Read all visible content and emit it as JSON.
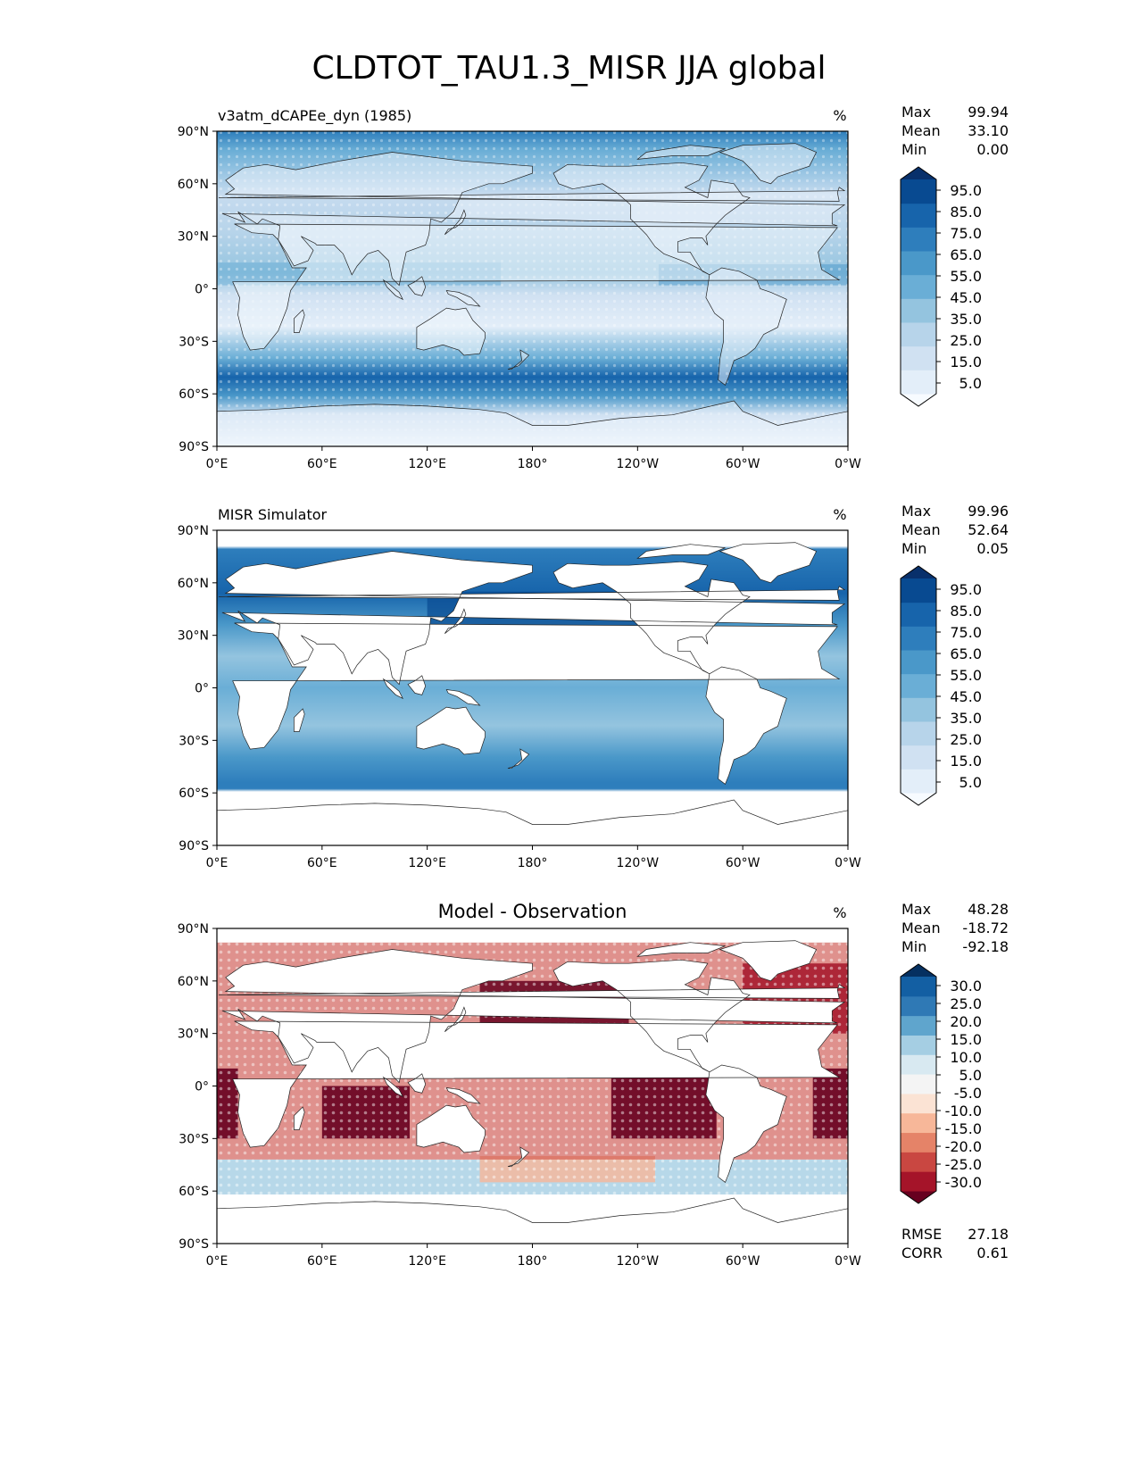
{
  "title": "CLDTOT_TAU1.3_MISR JJA global",
  "panels": [
    {
      "left_title": "v3atm_dCAPEe_dyn (1985)",
      "center_title": "",
      "units": "%",
      "stats": [
        [
          "Max",
          "99.94"
        ],
        [
          "Mean",
          "33.10"
        ],
        [
          "Min",
          "0.00"
        ]
      ],
      "colorbar": {
        "labels": [
          "95.0",
          "85.0",
          "75.0",
          "65.0",
          "55.0",
          "45.0",
          "35.0",
          "25.0",
          "15.0",
          "5.0"
        ],
        "colors": [
          "#f7fbff",
          "#e3eef9",
          "#d0e1f2",
          "#b7d4ea",
          "#94c4df",
          "#6aaed6",
          "#4a98c9",
          "#2e7ebc",
          "#1764ab",
          "#084a91",
          "#08306b"
        ]
      },
      "style": "model"
    },
    {
      "left_title": "MISR Simulator",
      "center_title": "",
      "units": "%",
      "stats": [
        [
          "Max",
          "99.96"
        ],
        [
          "Mean",
          "52.64"
        ],
        [
          "Min",
          "0.05"
        ]
      ],
      "colorbar": {
        "labels": [
          "95.0",
          "85.0",
          "75.0",
          "65.0",
          "55.0",
          "45.0",
          "35.0",
          "25.0",
          "15.0",
          "5.0"
        ],
        "colors": [
          "#f7fbff",
          "#e3eef9",
          "#d0e1f2",
          "#b7d4ea",
          "#94c4df",
          "#6aaed6",
          "#4a98c9",
          "#2e7ebc",
          "#1764ab",
          "#084a91",
          "#08306b"
        ]
      },
      "style": "obs"
    },
    {
      "left_title": "",
      "center_title": "Model - Observation",
      "units": "%",
      "stats": [
        [
          "Max",
          "48.28"
        ],
        [
          "Mean",
          "-18.72"
        ],
        [
          "Min",
          "-92.18"
        ]
      ],
      "colorbar": {
        "labels": [
          "30.0",
          "25.0",
          "20.0",
          "15.0",
          "10.0",
          "5.0",
          "-5.0",
          "-10.0",
          "-15.0",
          "-20.0",
          "-25.0",
          "-30.0"
        ],
        "colors": [
          "#67001f",
          "#a51429",
          "#c94741",
          "#e58368",
          "#f7b799",
          "#fbe3d4",
          "#f4f4f4",
          "#d8e9f1",
          "#a5cee3",
          "#5fa5cd",
          "#2f79b5",
          "#135fa3",
          "#053061"
        ]
      },
      "style": "diff"
    }
  ],
  "metrics": [
    [
      "RMSE",
      "27.18"
    ],
    [
      "CORR",
      "0.61"
    ]
  ],
  "axes": {
    "lat_labels": [
      "90°N",
      "60°N",
      "30°N",
      "0°",
      "30°S",
      "60°S",
      "90°S"
    ],
    "lon_labels": [
      "0°E",
      "60°E",
      "120°E",
      "180°",
      "120°W",
      "60°W",
      "0°W"
    ]
  }
}
